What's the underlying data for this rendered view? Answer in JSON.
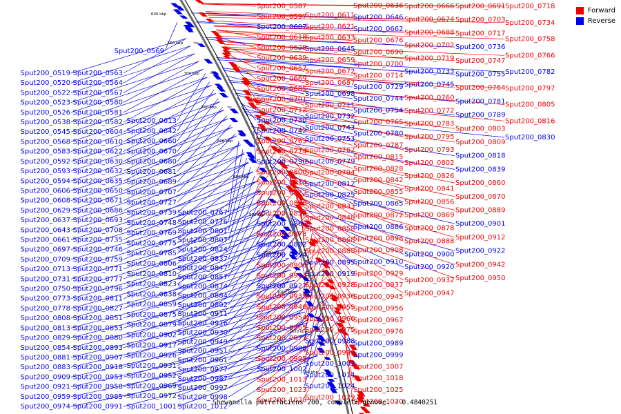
{
  "colors": {
    "forward": "#ee0000",
    "reverse": "#0000ee",
    "backbone": "#666666"
  },
  "legend": [
    {
      "key": "forward",
      "label": "Forward"
    },
    {
      "key": "reverse",
      "label": "Reverse"
    }
  ],
  "caption": "Shewanella putrefaciens 200, complete genome. - 0.4840251",
  "scale_labels": [
    "600 kbp",
    "650 kbp",
    "700 kbp",
    "750 kbp",
    "800 kbp",
    "850 kbp",
    "900 kbp",
    "950 kbp",
    "1000 kbp",
    "1050 kbp",
    "1100 kbp"
  ],
  "left_labels": [
    "Sput200_0519",
    "Sput200_0520",
    "Sput200_0522",
    "Sput200_0523",
    "Sput200_0526",
    "Sput200_0538",
    "Sput200_0545",
    "Sput200_0568",
    "Sput200_0583",
    "Sput200_0592",
    "Sput200_0593",
    "Sput200_0594",
    "Sput200_0606",
    "Sput200_0608",
    "Sput200_0629",
    "Sput200_0637",
    "Sput200_0643",
    "Sput200_0661",
    "Sput200_0697",
    "Sput200_0709",
    "Sput200_0713",
    "Sput200_0731",
    "Sput200_0750",
    "Sput200_0773",
    "Sput200_0778",
    "Sput200_0808",
    "Sput200_0813",
    "Sput200_0829",
    "Sput200_0854",
    "Sput200_0881",
    "Sput200_0883",
    "Sput200_0909",
    "Sput200_0921",
    "Sput200_0959",
    "Sput200_0974"
  ],
  "left_labels_2": [
    "Sput200_0563",
    "Sput200_0564",
    "Sput200_0567",
    "Sput200_0580",
    "Sput200_0581",
    "Sput200_0582",
    "Sput200_0604",
    "Sput200_0610",
    "Sput200_0622",
    "Sput200_0630",
    "Sput200_0632",
    "Sput200_0635",
    "Sput200_0650",
    "Sput200_0671",
    "Sput200_0686",
    "Sput200_0693",
    "Sput200_0708",
    "Sput200_0735",
    "Sput200_0746",
    "Sput200_0759",
    "Sput200_0771",
    "Sput200_0777",
    "Sput200_0796",
    "Sput200_0811",
    "Sput200_0827",
    "Sput200_0851",
    "Sput200_0853",
    "Sput200_0880",
    "Sput200_0893",
    "Sput200_0907",
    "Sput200_0918",
    "Sput200_0953",
    "Sput200_0958",
    "Sput200_0985",
    "Sput200_0991"
  ],
  "left_labels_3": [
    "Sput200_0613",
    "Sput200_0642",
    "Sput200_0660",
    "Sput200_0670",
    "Sput200_0680",
    "Sput200_0681",
    "Sput200_0689",
    "Sput200_0707",
    "Sput200_0727",
    "Sput200_0739",
    "Sput200_0748",
    "Sput200_0769",
    "Sput200_0775",
    "Sput200_0785",
    "Sput200_0806",
    "Sput200_0810",
    "Sput200_0823",
    "Sput200_0838",
    "Sput200_0859",
    "Sput200_0875",
    "Sput200_0879",
    "Sput200_0902",
    "Sput200_0917",
    "Sput200_0926",
    "Sput200_0931",
    "Sput200_0952",
    "Sput200_0969",
    "Sput200_0972",
    "Sput200_1001"
  ],
  "left_labels_4": [
    "Sput200_0767",
    "Sput200_0776",
    "Sput200_0801",
    "Sput200_0807",
    "Sput200_0824",
    "Sput200_0837",
    "Sput200_0847",
    "Sput200_0857",
    "Sput200_0874",
    "Sput200_0884",
    "Sput200_0892",
    "Sput200_0911",
    "Sput200_0916",
    "Sput200_0930",
    "Sput200_0949",
    "Sput200_0951",
    "Sput200_0961",
    "Sput200_0977",
    "Sput200_0987",
    "Sput200_0997",
    "Sput200_0998",
    "Sput200_1012"
  ],
  "left_top_labels": [
    "Sput200_0569"
  ],
  "right_labels_1": [
    {
      "t": "Sput200_0587",
      "s": "f"
    },
    {
      "t": "Sput200_0597",
      "s": "f"
    },
    {
      "t": "Sput200_0607",
      "s": "r"
    },
    {
      "t": "Sput200_0618",
      "s": "f"
    },
    {
      "t": "Sput200_0628",
      "s": "f"
    },
    {
      "t": "Sput200_0639",
      "s": "f"
    },
    {
      "t": "Sput200_0657",
      "s": "f"
    },
    {
      "t": "Sput200_0669",
      "s": "f"
    },
    {
      "t": "Sput200_0685",
      "s": "f"
    },
    {
      "t": "Sput200_0701",
      "s": "f"
    },
    {
      "t": "Sput200_0712",
      "s": "f"
    },
    {
      "t": "Sput200_0730",
      "s": "r"
    },
    {
      "t": "Sput200_0742",
      "s": "r"
    },
    {
      "t": "Sput200_0763",
      "s": "f"
    },
    {
      "t": "Sput200_0774",
      "s": "f"
    },
    {
      "t": "Sput200_0790",
      "s": "r"
    },
    {
      "t": "Sput200_0800",
      "s": "f"
    },
    {
      "t": "Sput200_0814",
      "s": "f"
    },
    {
      "t": "Sput200_0822",
      "s": "f"
    },
    {
      "t": "Sput200_0836",
      "s": "f"
    },
    {
      "t": "Sput200_0850",
      "s": "f"
    },
    {
      "t": "Sput200_0866",
      "s": "r"
    },
    {
      "t": "Sput200_0873",
      "s": "f"
    },
    {
      "t": "Sput200_0882",
      "s": "r"
    },
    {
      "t": "Sput200_0894",
      "s": "r"
    },
    {
      "t": "Sput200_0906",
      "s": "f"
    },
    {
      "t": "Sput200_0914",
      "s": "f"
    },
    {
      "t": "Sput200_0927",
      "s": "r"
    },
    {
      "t": "Sput200_0935",
      "s": "f"
    },
    {
      "t": "Sput200_0946",
      "s": "f"
    },
    {
      "t": "Sput200_0954",
      "s": "f"
    },
    {
      "t": "Sput200_0965",
      "s": "f"
    },
    {
      "t": "Sput200_0973",
      "s": "f"
    },
    {
      "t": "Sput200_0986",
      "s": "r"
    },
    {
      "t": "Sput200_0995",
      "s": "f"
    },
    {
      "t": "Sput200_1002",
      "s": "r"
    },
    {
      "t": "Sput200_1013",
      "s": "f"
    },
    {
      "t": "Sput200_1023",
      "s": "f"
    },
    {
      "t": "Sput200_1028",
      "s": "f"
    }
  ],
  "right_labels_2": [
    {
      "t": "Sput200_0611",
      "s": "f"
    },
    {
      "t": "Sput200_0621",
      "s": "f"
    },
    {
      "t": "Sput200_0633",
      "s": "f"
    },
    {
      "t": "Sput200_0645",
      "s": "r"
    },
    {
      "t": "Sput200_0659",
      "s": "f"
    },
    {
      "t": "Sput200_0672",
      "s": "f"
    },
    {
      "t": "Sput200_0687",
      "s": "f"
    },
    {
      "t": "Sput200_0698",
      "s": "r"
    },
    {
      "t": "Sput200_0711",
      "s": "f"
    },
    {
      "t": "Sput200_0732",
      "s": "r"
    },
    {
      "t": "Sput200_0743",
      "s": "r"
    },
    {
      "t": "Sput200_0753",
      "s": "r"
    },
    {
      "t": "Sput200_0762",
      "s": "f"
    },
    {
      "t": "Sput200_0779",
      "s": "r"
    },
    {
      "t": "Sput200_0794",
      "s": "f"
    },
    {
      "t": "Sput200_0812",
      "s": "r"
    },
    {
      "t": "Sput200_0825",
      "s": "r"
    },
    {
      "t": "Sput200_0833",
      "s": "f"
    },
    {
      "t": "Sput200_0848",
      "s": "f"
    },
    {
      "t": "Sput200_0858",
      "s": "f"
    },
    {
      "t": "Sput200_0868",
      "s": "f"
    },
    {
      "t": "Sput200_0885",
      "s": "f"
    },
    {
      "t": "Sput200_0895",
      "s": "r"
    },
    {
      "t": "Sput200_0919",
      "s": "r"
    },
    {
      "t": "Sput200_0928",
      "s": "f"
    },
    {
      "t": "Sput200_0936",
      "s": "f"
    },
    {
      "t": "Sput200_0955",
      "s": "f"
    },
    {
      "t": "Sput200_0966",
      "s": "f"
    },
    {
      "t": "Sput200_0975",
      "s": "f"
    },
    {
      "t": "Sput200_0988",
      "s": "r"
    },
    {
      "t": "Sput200_0996",
      "s": "f"
    },
    {
      "t": "Sput200_1003",
      "s": "r"
    },
    {
      "t": "Sput200_1014",
      "s": "r"
    },
    {
      "t": "Sput200_1024",
      "s": "r"
    },
    {
      "t": "Sput200_1029",
      "s": "f"
    }
  ],
  "right_labels_3": [
    {
      "t": "Sput200_0636",
      "s": "f"
    },
    {
      "t": "Sput200_0646",
      "s": "r"
    },
    {
      "t": "Sput200_0662",
      "s": "r"
    },
    {
      "t": "Sput200_0676",
      "s": "f"
    },
    {
      "t": "Sput200_0690",
      "s": "f"
    },
    {
      "t": "Sput200_0700",
      "s": "f"
    },
    {
      "t": "Sput200_0714",
      "s": "f"
    },
    {
      "t": "Sput200_0729",
      "s": "r"
    },
    {
      "t": "Sput200_0744",
      "s": "r"
    },
    {
      "t": "Sput200_0754",
      "s": "r"
    },
    {
      "t": "Sput200_0765",
      "s": "f"
    },
    {
      "t": "Sput200_0780",
      "s": "r"
    },
    {
      "t": "Sput200_0787",
      "s": "f"
    },
    {
      "t": "Sput200_0815",
      "s": "f"
    },
    {
      "t": "Sput200_0828",
      "s": "f"
    },
    {
      "t": "Sput200_0842",
      "s": "f"
    },
    {
      "t": "Sput200_0855",
      "s": "f"
    },
    {
      "t": "Sput200_0865",
      "s": "r"
    },
    {
      "t": "Sput200_0872",
      "s": "f"
    },
    {
      "t": "Sput200_0886",
      "s": "r"
    },
    {
      "t": "Sput200_0898",
      "s": "f"
    },
    {
      "t": "Sput200_0908",
      "s": "f"
    },
    {
      "t": "Sput200_0910",
      "s": "r"
    },
    {
      "t": "Sput200_0929",
      "s": "f"
    },
    {
      "t": "Sput200_0937",
      "s": "f"
    },
    {
      "t": "Sput200_0945",
      "s": "f"
    },
    {
      "t": "Sput200_0956",
      "s": "f"
    },
    {
      "t": "Sput200_0967",
      "s": "f"
    },
    {
      "t": "Sput200_0976",
      "s": "f"
    },
    {
      "t": "Sput200_0989",
      "s": "r"
    },
    {
      "t": "Sput200_0999",
      "s": "r"
    },
    {
      "t": "Sput200_1007",
      "s": "f"
    },
    {
      "t": "Sput200_1018",
      "s": "f"
    },
    {
      "t": "Sput200_1025",
      "s": "f"
    },
    {
      "t": "Sput200_1030",
      "s": "f"
    }
  ],
  "right_labels_4": [
    {
      "t": "Sput200_0666",
      "s": "f"
    },
    {
      "t": "Sput200_0674",
      "s": "f"
    },
    {
      "t": "Sput200_0688",
      "s": "f"
    },
    {
      "t": "Sput200_0702",
      "s": "f"
    },
    {
      "t": "Sput200_0719",
      "s": "f"
    },
    {
      "t": "Sput200_0733",
      "s": "r"
    },
    {
      "t": "Sput200_0745",
      "s": "r"
    },
    {
      "t": "Sput200_0760",
      "s": "f"
    },
    {
      "t": "Sput200_0772",
      "s": "f"
    },
    {
      "t": "Sput200_0783",
      "s": "f"
    },
    {
      "t": "Sput200_0795",
      "s": "f"
    },
    {
      "t": "Sput200_0793",
      "s": "f"
    },
    {
      "t": "Sput200_0802",
      "s": "f"
    },
    {
      "t": "Sput200_0826",
      "s": "f"
    },
    {
      "t": "Sput200_0841",
      "s": "f"
    },
    {
      "t": "Sput200_0856",
      "s": "f"
    },
    {
      "t": "Sput200_0869",
      "s": "f"
    },
    {
      "t": "Sput200_0878",
      "s": "f"
    },
    {
      "t": "Sput200_0888",
      "s": "f"
    },
    {
      "t": "Sput200_0900",
      "s": "r"
    },
    {
      "t": "Sput200_0920",
      "s": "r"
    },
    {
      "t": "Sput200_0932",
      "s": "f"
    },
    {
      "t": "Sput200_0947",
      "s": "f"
    }
  ],
  "right_labels_5": [
    {
      "t": "Sput200_0691",
      "s": "f"
    },
    {
      "t": "Sput200_0703",
      "s": "f"
    },
    {
      "t": "Sput200_0717",
      "s": "f"
    },
    {
      "t": "Sput200_0736",
      "s": "r"
    },
    {
      "t": "Sput200_0747",
      "s": "f"
    },
    {
      "t": "Sput200_0755",
      "s": "r"
    },
    {
      "t": "Sput200_0764",
      "s": "f"
    },
    {
      "t": "Sput200_0781",
      "s": "r"
    },
    {
      "t": "Sput200_0789",
      "s": "r"
    },
    {
      "t": "Sput200_0803",
      "s": "f"
    },
    {
      "t": "Sput200_0809",
      "s": "f"
    },
    {
      "t": "Sput200_0818",
      "s": "r"
    },
    {
      "t": "Sput200_0839",
      "s": "r"
    },
    {
      "t": "Sput200_0860",
      "s": "f"
    },
    {
      "t": "Sput200_0870",
      "s": "f"
    },
    {
      "t": "Sput200_0889",
      "s": "f"
    },
    {
      "t": "Sput200_0901",
      "s": "r"
    },
    {
      "t": "Sput200_0912",
      "s": "f"
    },
    {
      "t": "Sput200_0922",
      "s": "r"
    },
    {
      "t": "Sput200_0942",
      "s": "f"
    },
    {
      "t": "Sput200_0950",
      "s": "f"
    }
  ],
  "right_labels_6": [
    {
      "t": "Sput200_0718",
      "s": "f"
    },
    {
      "t": "Sput200_0734",
      "s": "f"
    },
    {
      "t": "Sput200_0758",
      "s": "f"
    },
    {
      "t": "Sput200_0766",
      "s": "f"
    },
    {
      "t": "Sput200_0782",
      "s": "r"
    },
    {
      "t": "Sput200_0797",
      "s": "f"
    },
    {
      "t": "Sput200_0805",
      "s": "f"
    },
    {
      "t": "Sput200_0816",
      "s": "f"
    },
    {
      "t": "Sput200_0830",
      "s": "r"
    }
  ]
}
